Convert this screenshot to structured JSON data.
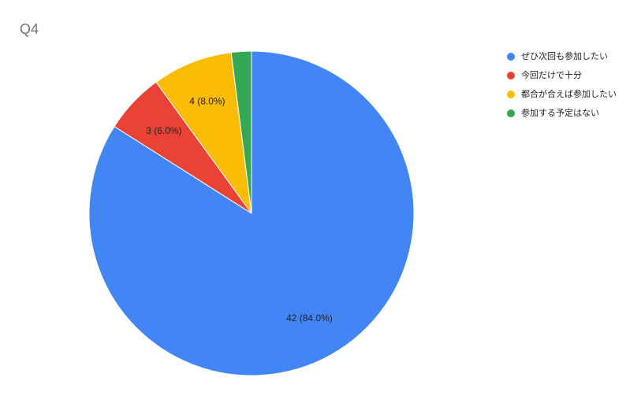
{
  "chart_data": {
    "type": "pie",
    "title": "Q4",
    "categories": [
      "ぜひ次回も参加したい",
      "今回だけで十分",
      "都合が合えば参加したい",
      "参加する予定はない"
    ],
    "values": [
      42,
      3,
      4,
      1
    ],
    "value_labels": [
      "42 (84.0%)",
      "3 (6.0%)",
      "4 (8.0%)",
      null
    ],
    "colors": [
      "#4285f4",
      "#ea4335",
      "#fbbc04",
      "#34a853"
    ],
    "legend": "right"
  }
}
